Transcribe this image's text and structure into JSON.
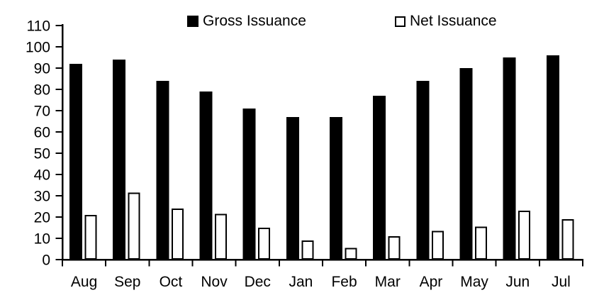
{
  "legend": {
    "items": [
      {
        "label": "Gross Issuance",
        "swatch": "black-filled-square"
      },
      {
        "label": "Net Issuance",
        "swatch": "white-outlined-square"
      }
    ]
  },
  "chart_data": {
    "type": "bar",
    "title": "",
    "xlabel": "",
    "ylabel": "",
    "categories": [
      "Aug",
      "Sep",
      "Oct",
      "Nov",
      "Dec",
      "Jan",
      "Feb",
      "Mar",
      "Apr",
      "May",
      "Jun",
      "Jul"
    ],
    "series": [
      {
        "name": "Gross Issuance",
        "values": [
          92,
          94,
          84,
          79,
          71,
          67,
          67,
          77,
          84,
          90,
          95,
          96
        ],
        "fill": "#000000",
        "stroke": "#000000"
      },
      {
        "name": "Net Issuance",
        "values": [
          21,
          31.5,
          24,
          21.5,
          15,
          9,
          5.5,
          11,
          13.5,
          15.5,
          23,
          19
        ],
        "fill": "#ffffff",
        "stroke": "#000000"
      }
    ],
    "ylim": [
      0,
      110
    ],
    "yticks": [
      0,
      10,
      20,
      30,
      40,
      50,
      60,
      70,
      80,
      90,
      100,
      110
    ],
    "grid": false,
    "legend_position": "top"
  },
  "colors": {
    "background": "#ffffff",
    "axis": "#000000",
    "text": "#000000"
  }
}
